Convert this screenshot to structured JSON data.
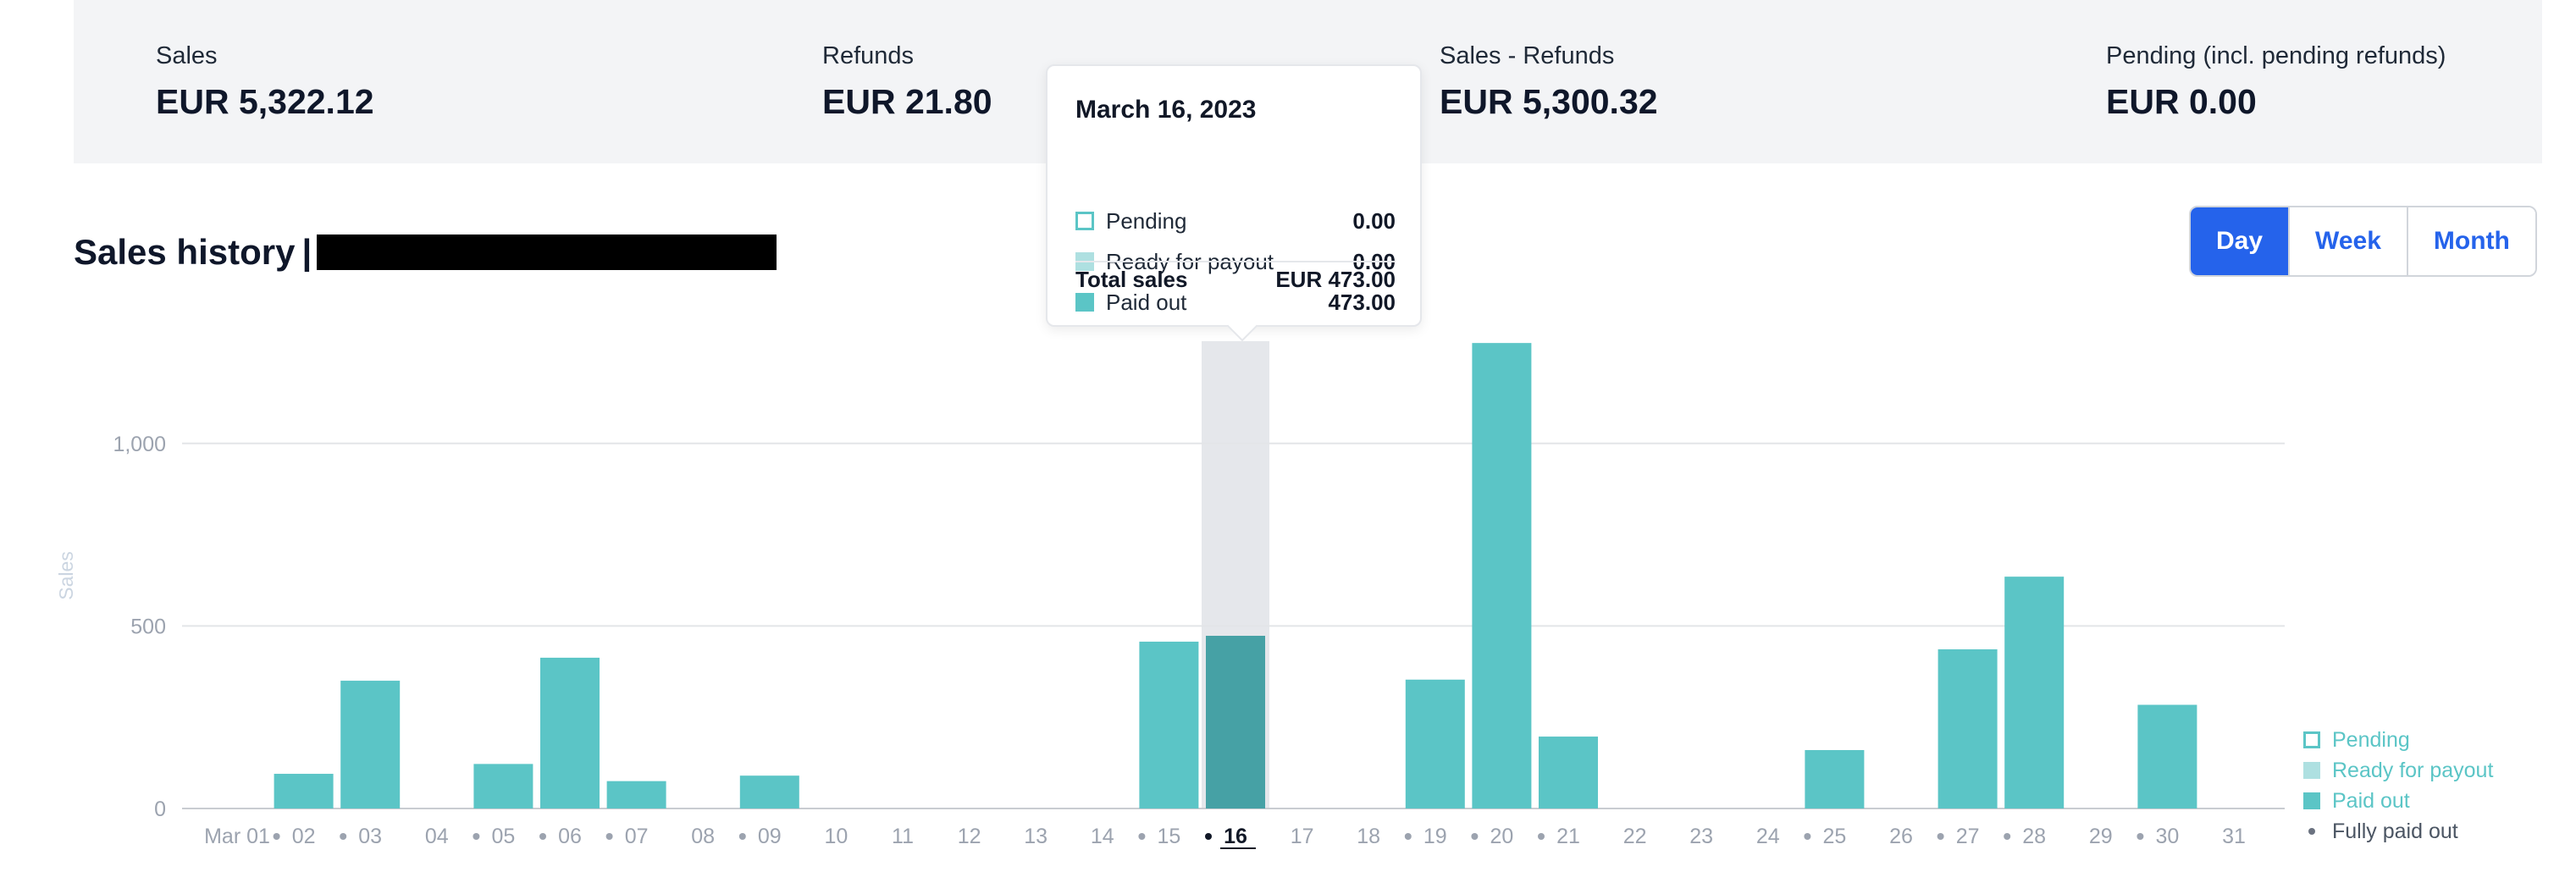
{
  "summary": {
    "sales_label": "Sales",
    "sales_value": "EUR 5,322.12",
    "refunds_label": "Refunds",
    "refunds_value": "EUR 21.80",
    "net_label": "Sales - Refunds",
    "net_value": "EUR 5,300.32",
    "pending_label": "Pending (incl. pending refunds)",
    "pending_value": "EUR 0.00"
  },
  "header": {
    "title": "Sales history",
    "separator": "|"
  },
  "period_toggle": {
    "day": "Day",
    "week": "Week",
    "month": "Month",
    "selected": "Day"
  },
  "tooltip": {
    "date": "March 16, 2023",
    "rows": [
      {
        "label": "Pending",
        "value": "0.00"
      },
      {
        "label": "Ready for payout",
        "value": "0.00"
      },
      {
        "label": "Paid out",
        "value": "473.00"
      }
    ],
    "total_label": "Total sales",
    "total_value": "EUR 473.00"
  },
  "legend": {
    "pending": "Pending",
    "ready": "Ready for payout",
    "paid": "Paid out",
    "fully_paid": "Fully paid out"
  },
  "colors": {
    "paid_out": "#5bc5c6",
    "paid_out_highlight": "#46a1a5",
    "ready_for_payout": "#aee0e1",
    "pending_outline": "#5bc5c6",
    "accent": "#2563eb",
    "highlight_band": "#e5e7eb"
  },
  "chart_data": {
    "type": "bar",
    "ylabel": "Sales",
    "ylim": [
      0,
      1280
    ],
    "yticks": [
      0,
      500,
      1000
    ],
    "ytick_labels": [
      "0",
      "500",
      "1,000"
    ],
    "grid": true,
    "legend_position": "bottom-right",
    "categories": [
      "Mar 01",
      "02",
      "03",
      "04",
      "05",
      "06",
      "07",
      "08",
      "09",
      "10",
      "11",
      "12",
      "13",
      "14",
      "15",
      "16",
      "17",
      "18",
      "19",
      "20",
      "21",
      "22",
      "23",
      "24",
      "25",
      "26",
      "27",
      "28",
      "29",
      "30",
      "31"
    ],
    "fully_paid_dots": [
      false,
      true,
      true,
      false,
      true,
      true,
      true,
      false,
      true,
      false,
      false,
      false,
      false,
      false,
      true,
      true,
      false,
      false,
      true,
      true,
      true,
      false,
      false,
      false,
      true,
      false,
      true,
      true,
      false,
      true,
      false
    ],
    "selected_category": "16",
    "series": [
      {
        "name": "Pending",
        "values": [
          0,
          0,
          0,
          0,
          0,
          0,
          0,
          0,
          0,
          0,
          0,
          0,
          0,
          0,
          0,
          0,
          0,
          0,
          0,
          0,
          0,
          0,
          0,
          0,
          0,
          0,
          0,
          0,
          0,
          0,
          0
        ]
      },
      {
        "name": "Ready for payout",
        "values": [
          0,
          0,
          0,
          0,
          0,
          0,
          0,
          0,
          0,
          0,
          0,
          0,
          0,
          0,
          0,
          0,
          0,
          0,
          0,
          0,
          0,
          0,
          0,
          0,
          0,
          0,
          0,
          0,
          0,
          0,
          0
        ]
      },
      {
        "name": "Paid out",
        "values": [
          0,
          95,
          350,
          0,
          122,
          413,
          75,
          0,
          90,
          0,
          0,
          0,
          0,
          0,
          457,
          473,
          0,
          0,
          353,
          1275,
          197,
          0,
          0,
          0,
          160,
          0,
          436,
          635,
          0,
          284,
          0
        ]
      }
    ]
  }
}
